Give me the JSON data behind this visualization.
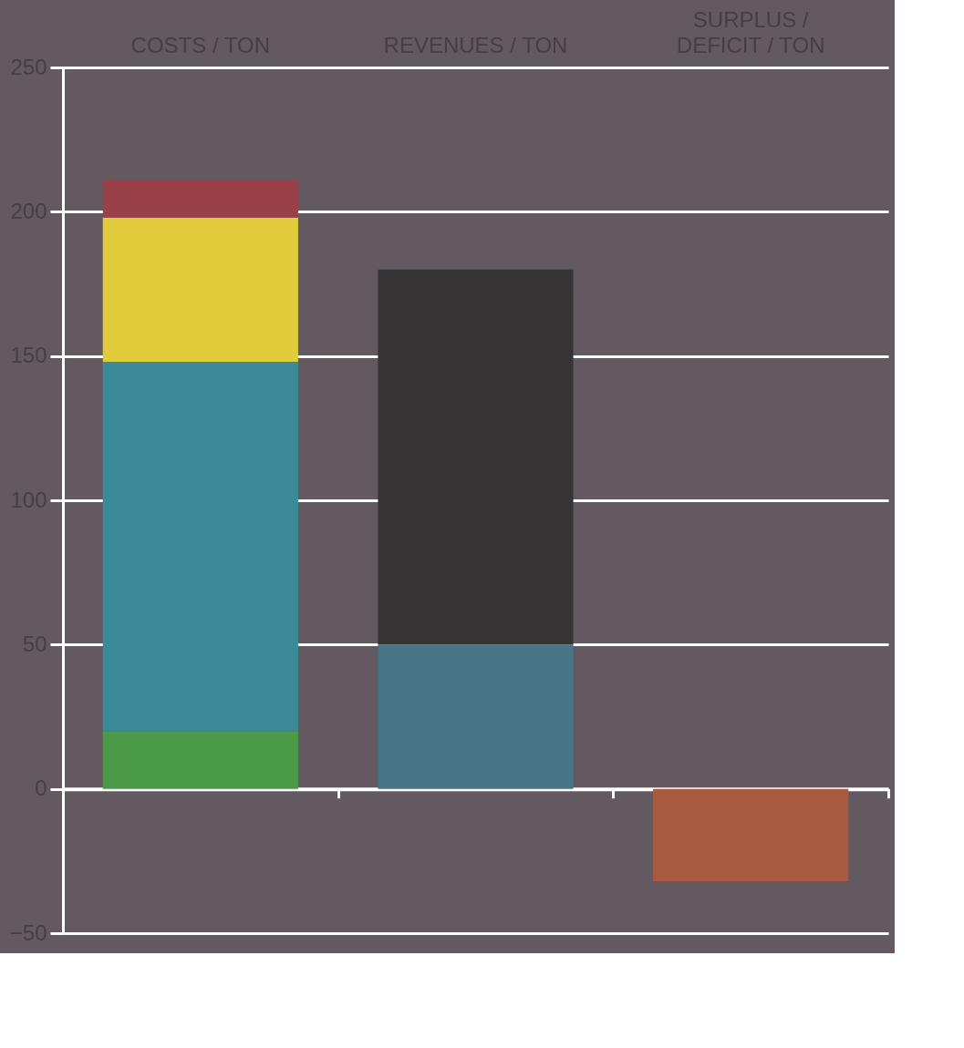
{
  "chart_data": {
    "type": "bar",
    "stacked": true,
    "categories": [
      "COSTS / TON",
      "REVENUES / TON",
      "SURPLUS /\nDEFICIT / TON"
    ],
    "series": [
      {
        "color": "#4a9a48",
        "values": [
          20,
          null,
          null
        ]
      },
      {
        "color": "#3a8a9a",
        "values": [
          128,
          null,
          null
        ]
      },
      {
        "color": "#e0cc3a",
        "values": [
          50,
          null,
          null
        ]
      },
      {
        "color": "#9a4048",
        "values": [
          13,
          null,
          null
        ]
      },
      {
        "color": "#467688",
        "values": [
          null,
          50,
          null
        ]
      },
      {
        "color": "#363434",
        "values": [
          null,
          130,
          null
        ]
      },
      {
        "color": "#a85a40",
        "values": [
          null,
          null,
          -32
        ]
      }
    ],
    "ylim": [
      -50,
      250
    ],
    "yticks": [
      -50,
      0,
      50,
      100,
      150,
      200,
      250
    ],
    "grid": "y",
    "legend": false
  }
}
